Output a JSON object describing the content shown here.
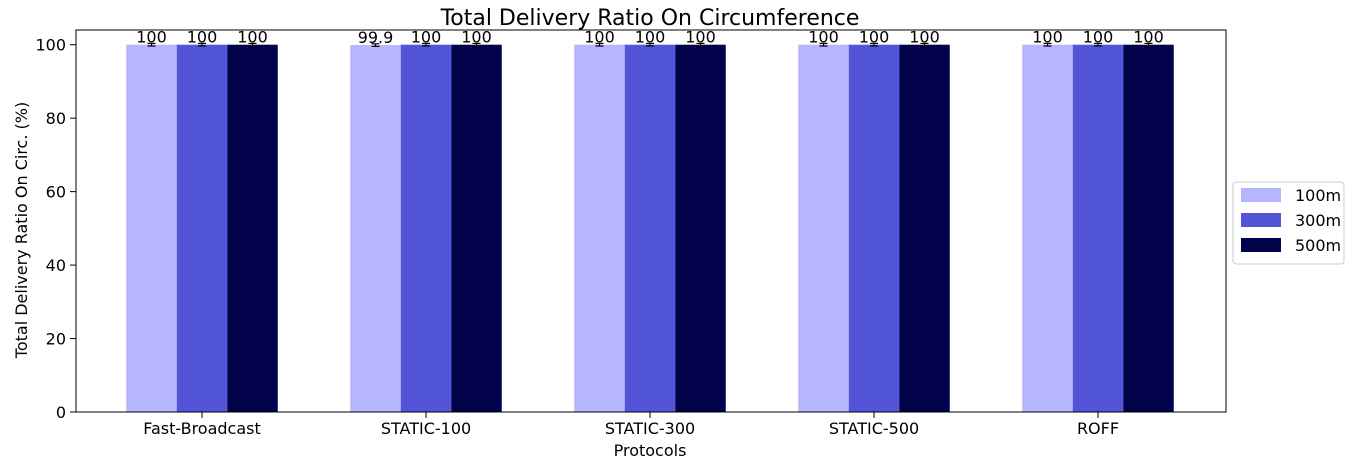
{
  "chart_data": {
    "type": "bar",
    "title": "Total Delivery Ratio On Circumference",
    "xlabel": "Protocols",
    "ylabel": "Total Delivery Ratio On Circ. (%)",
    "ylim": [
      0,
      104
    ],
    "yticks": [
      0,
      20,
      40,
      60,
      80,
      100
    ],
    "grid": false,
    "legend_position": "right",
    "categories": [
      "Fast-Broadcast",
      "STATIC-100",
      "STATIC-300",
      "STATIC-500",
      "ROFF"
    ],
    "series": [
      {
        "name": "100m",
        "color": "#b6b6fe",
        "values": [
          100,
          99.9,
          100,
          100,
          100
        ],
        "labels": [
          "100",
          "99.9",
          "100",
          "100",
          "100"
        ]
      },
      {
        "name": "300m",
        "color": "#5255d7",
        "values": [
          100,
          100,
          100,
          100,
          100
        ],
        "labels": [
          "100",
          "100",
          "100",
          "100",
          "100"
        ]
      },
      {
        "name": "500m",
        "color": "#02024b",
        "values": [
          100,
          100,
          100,
          100,
          100
        ],
        "labels": [
          "100",
          "100",
          "100",
          "100",
          "100"
        ]
      }
    ]
  }
}
